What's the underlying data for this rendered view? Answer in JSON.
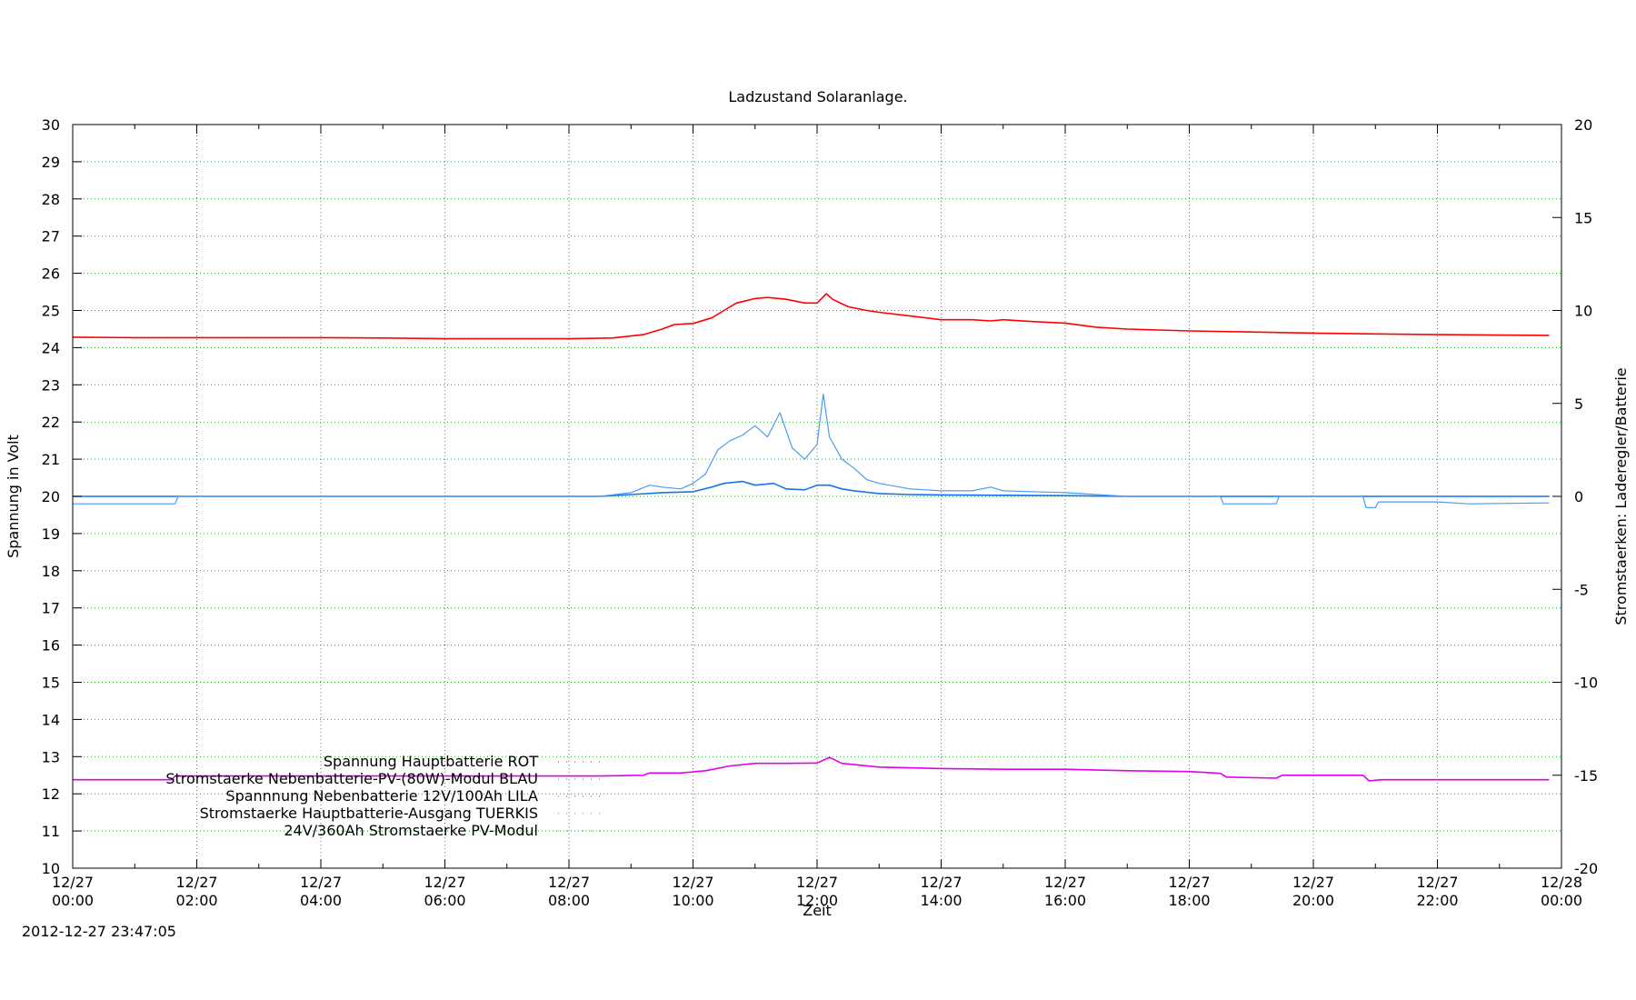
{
  "chart_data": {
    "type": "line",
    "title": "Ladzustand Solaranlage.",
    "xlabel": "Zeit",
    "ylabel_left": "Spannung in Volt",
    "ylabel_right": "Stromstaerken: Laderegler/Batterie",
    "timestamp": "2012-12-27 23:47:05",
    "y_left": {
      "lim": [
        10,
        30
      ],
      "ticks": [
        10,
        11,
        12,
        13,
        14,
        15,
        16,
        17,
        18,
        19,
        20,
        21,
        22,
        23,
        24,
        25,
        26,
        27,
        28,
        29,
        30
      ]
    },
    "y_right": {
      "lim": [
        -20,
        20
      ],
      "ticks": [
        -20,
        -15,
        -10,
        -5,
        0,
        5,
        10,
        15,
        20
      ]
    },
    "x": {
      "lim_hours": [
        0,
        24
      ],
      "ticks": [
        {
          "h": 0,
          "date": "12/27",
          "time": "00:00"
        },
        {
          "h": 2,
          "date": "12/27",
          "time": "02:00"
        },
        {
          "h": 4,
          "date": "12/27",
          "time": "04:00"
        },
        {
          "h": 6,
          "date": "12/27",
          "time": "06:00"
        },
        {
          "h": 8,
          "date": "12/27",
          "time": "08:00"
        },
        {
          "h": 10,
          "date": "12/27",
          "time": "10:00"
        },
        {
          "h": 12,
          "date": "12/27",
          "time": "12:00"
        },
        {
          "h": 14,
          "date": "12/27",
          "time": "14:00"
        },
        {
          "h": 16,
          "date": "12/27",
          "time": "16:00"
        },
        {
          "h": 18,
          "date": "12/27",
          "time": "18:00"
        },
        {
          "h": 20,
          "date": "12/27",
          "time": "20:00"
        },
        {
          "h": 22,
          "date": "12/27",
          "time": "22:00"
        },
        {
          "h": 24,
          "date": "12/28",
          "time": "00:00"
        }
      ]
    },
    "grid": true,
    "legend_position": "bottom-left",
    "series": [
      {
        "name": "Spannung Hauptbatterie ROT",
        "color": "#ff0000",
        "axis": "left",
        "points": [
          [
            0,
            24.28
          ],
          [
            1,
            24.27
          ],
          [
            2,
            24.27
          ],
          [
            3,
            24.27
          ],
          [
            4,
            24.27
          ],
          [
            5,
            24.26
          ],
          [
            6,
            24.24
          ],
          [
            7,
            24.24
          ],
          [
            8,
            24.24
          ],
          [
            8.7,
            24.26
          ],
          [
            9.2,
            24.35
          ],
          [
            9.5,
            24.5
          ],
          [
            9.7,
            24.62
          ],
          [
            10,
            24.65
          ],
          [
            10.3,
            24.8
          ],
          [
            10.5,
            25.0
          ],
          [
            10.7,
            25.2
          ],
          [
            11,
            25.32
          ],
          [
            11.2,
            25.35
          ],
          [
            11.5,
            25.3
          ],
          [
            11.8,
            25.2
          ],
          [
            12,
            25.2
          ],
          [
            12.15,
            25.45
          ],
          [
            12.25,
            25.3
          ],
          [
            12.5,
            25.1
          ],
          [
            12.8,
            25.0
          ],
          [
            13,
            24.95
          ],
          [
            13.5,
            24.85
          ],
          [
            14,
            24.75
          ],
          [
            14.5,
            24.75
          ],
          [
            14.8,
            24.72
          ],
          [
            15,
            24.75
          ],
          [
            15.5,
            24.7
          ],
          [
            16,
            24.66
          ],
          [
            16.5,
            24.55
          ],
          [
            17,
            24.5
          ],
          [
            18,
            24.45
          ],
          [
            19,
            24.42
          ],
          [
            20,
            24.39
          ],
          [
            21,
            24.37
          ],
          [
            22,
            24.35
          ],
          [
            23.8,
            24.33
          ]
        ]
      },
      {
        "name": "Stromstaerke Nebenbatterie-PV-(80W)-Modul BLAU",
        "color": "#1874e8",
        "axis": "right",
        "points": [
          [
            0,
            0
          ],
          [
            8.5,
            0
          ],
          [
            9,
            0.1
          ],
          [
            9.5,
            0.2
          ],
          [
            10,
            0.25
          ],
          [
            10.3,
            0.5
          ],
          [
            10.5,
            0.7
          ],
          [
            10.8,
            0.8
          ],
          [
            11,
            0.6
          ],
          [
            11.3,
            0.7
          ],
          [
            11.5,
            0.4
          ],
          [
            11.8,
            0.35
          ],
          [
            12,
            0.6
          ],
          [
            12.2,
            0.6
          ],
          [
            12.4,
            0.4
          ],
          [
            12.6,
            0.3
          ],
          [
            13,
            0.15
          ],
          [
            13.5,
            0.1
          ],
          [
            14,
            0.08
          ],
          [
            15,
            0.06
          ],
          [
            16,
            0.04
          ],
          [
            17,
            0
          ],
          [
            23.8,
            0
          ]
        ]
      },
      {
        "name": "Spannnung Nebenbatterie 12V/100Ah LILA",
        "color": "#e000f0",
        "axis": "left",
        "points": [
          [
            0,
            12.38
          ],
          [
            1.6,
            12.38
          ],
          [
            1.65,
            12.48
          ],
          [
            4,
            12.48
          ],
          [
            8.5,
            12.48
          ],
          [
            9.2,
            12.5
          ],
          [
            9.3,
            12.56
          ],
          [
            9.8,
            12.56
          ],
          [
            10.2,
            12.62
          ],
          [
            10.6,
            12.75
          ],
          [
            11,
            12.82
          ],
          [
            11.5,
            12.82
          ],
          [
            12,
            12.83
          ],
          [
            12.2,
            12.98
          ],
          [
            12.4,
            12.82
          ],
          [
            13,
            12.72
          ],
          [
            14,
            12.68
          ],
          [
            15,
            12.66
          ],
          [
            16,
            12.66
          ],
          [
            17,
            12.62
          ],
          [
            18,
            12.6
          ],
          [
            18.5,
            12.55
          ],
          [
            18.6,
            12.45
          ],
          [
            19.4,
            12.42
          ],
          [
            19.5,
            12.5
          ],
          [
            20.8,
            12.5
          ],
          [
            20.9,
            12.35
          ],
          [
            21.1,
            12.38
          ],
          [
            23.8,
            12.38
          ]
        ]
      },
      {
        "name": "Stromstaerke Hauptbatterie-Ausgang TUERKIS",
        "color": "#4a9cf0",
        "axis": "right",
        "points": [
          [
            0,
            -0.4
          ],
          [
            1.65,
            -0.4
          ],
          [
            1.7,
            0
          ],
          [
            8.5,
            0
          ],
          [
            9,
            0.2
          ],
          [
            9.3,
            0.6
          ],
          [
            9.5,
            0.5
          ],
          [
            9.8,
            0.4
          ],
          [
            10,
            0.7
          ],
          [
            10.2,
            1.2
          ],
          [
            10.4,
            2.5
          ],
          [
            10.6,
            3.0
          ],
          [
            10.8,
            3.3
          ],
          [
            11,
            3.8
          ],
          [
            11.2,
            3.2
          ],
          [
            11.4,
            4.5
          ],
          [
            11.6,
            2.6
          ],
          [
            11.8,
            2.0
          ],
          [
            12,
            2.8
          ],
          [
            12.1,
            5.5
          ],
          [
            12.2,
            3.2
          ],
          [
            12.4,
            2.0
          ],
          [
            12.6,
            1.5
          ],
          [
            12.8,
            0.9
          ],
          [
            13,
            0.7
          ],
          [
            13.5,
            0.4
          ],
          [
            14,
            0.3
          ],
          [
            14.5,
            0.3
          ],
          [
            14.8,
            0.5
          ],
          [
            15,
            0.3
          ],
          [
            16,
            0.2
          ],
          [
            16.5,
            0.1
          ],
          [
            17,
            0
          ],
          [
            18.5,
            0
          ],
          [
            18.55,
            -0.4
          ],
          [
            19.4,
            -0.4
          ],
          [
            19.45,
            0
          ],
          [
            20.8,
            0
          ],
          [
            20.85,
            -0.6
          ],
          [
            21.0,
            -0.6
          ],
          [
            21.05,
            -0.3
          ],
          [
            22,
            -0.3
          ],
          [
            22.5,
            -0.4
          ],
          [
            23.8,
            -0.35
          ]
        ]
      },
      {
        "name": "24V/360Ah Stromstaerke PV-Modul",
        "color": "#9b3fd0",
        "axis": "right",
        "points": []
      }
    ]
  }
}
